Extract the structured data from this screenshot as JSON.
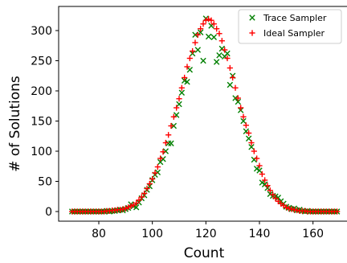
{
  "chart_data": {
    "type": "scatter",
    "title": "",
    "xlabel": "Count",
    "ylabel": "# of Solutions",
    "xlim": [
      65,
      173
    ],
    "ylim": [
      -16,
      340
    ],
    "xticks": [
      80,
      100,
      120,
      140,
      160
    ],
    "yticks": [
      0,
      50,
      100,
      150,
      200,
      250,
      300
    ],
    "grid": false,
    "legend": {
      "position": "top-right",
      "entries": [
        {
          "label": "Trace Sampler",
          "marker": "x",
          "color": "#008000"
        },
        {
          "label": "Ideal Sampler",
          "marker": "+",
          "color": "#ff0000"
        }
      ]
    },
    "series": [
      {
        "name": "Trace Sampler",
        "marker": "x",
        "color": "#008000",
        "x": [
          70,
          71,
          72,
          73,
          74,
          75,
          76,
          77,
          78,
          79,
          80,
          81,
          82,
          83,
          84,
          85,
          86,
          87,
          88,
          89,
          90,
          91,
          92,
          93,
          94,
          95,
          96,
          97,
          98,
          99,
          100,
          101,
          102,
          103,
          104,
          105,
          106,
          107,
          108,
          109,
          110,
          111,
          112,
          113,
          114,
          115,
          116,
          117,
          118,
          119,
          120,
          121,
          122,
          123,
          124,
          125,
          126,
          127,
          128,
          129,
          130,
          131,
          132,
          133,
          134,
          135,
          136,
          137,
          138,
          139,
          140,
          141,
          142,
          143,
          144,
          145,
          146,
          147,
          148,
          149,
          150,
          151,
          152,
          153,
          154,
          155,
          156,
          157,
          158,
          159,
          160,
          161,
          162,
          163,
          164,
          165,
          166,
          167,
          168,
          169
        ],
        "y": [
          0,
          0,
          0,
          0,
          0,
          0,
          0,
          0,
          0,
          0,
          0,
          0,
          0,
          1,
          0,
          1,
          1,
          2,
          3,
          2,
          4,
          6,
          12,
          9,
          7,
          15,
          22,
          27,
          36,
          42,
          52,
          61,
          65,
          82,
          87,
          100,
          113,
          113,
          142,
          160,
          178,
          197,
          217,
          215,
          235,
          262,
          293,
          268,
          297,
          250,
          320,
          290,
          308,
          289,
          248,
          259,
          270,
          257,
          262,
          210,
          225,
          188,
          182,
          168,
          150,
          133,
          121,
          107,
          86,
          71,
          68,
          48,
          45,
          39,
          29,
          26,
          25,
          23,
          17,
          13,
          8,
          6,
          4,
          5,
          2,
          3,
          1,
          0,
          1,
          0,
          0,
          0,
          0,
          0,
          0,
          0,
          0,
          0,
          0,
          0
        ]
      },
      {
        "name": "Ideal Sampler",
        "marker": "+",
        "color": "#ff0000",
        "x": [
          70,
          71,
          72,
          73,
          74,
          75,
          76,
          77,
          78,
          79,
          80,
          81,
          82,
          83,
          84,
          85,
          86,
          87,
          88,
          89,
          90,
          91,
          92,
          93,
          94,
          95,
          96,
          97,
          98,
          99,
          100,
          101,
          102,
          103,
          104,
          105,
          106,
          107,
          108,
          109,
          110,
          111,
          112,
          113,
          114,
          115,
          116,
          117,
          118,
          119,
          120,
          121,
          122,
          123,
          124,
          125,
          126,
          127,
          128,
          129,
          130,
          131,
          132,
          133,
          134,
          135,
          136,
          137,
          138,
          139,
          140,
          141,
          142,
          143,
          144,
          145,
          146,
          147,
          148,
          149,
          150,
          151,
          152,
          153,
          154,
          155,
          156,
          157,
          158,
          159,
          160,
          161,
          162,
          163,
          164,
          165,
          166,
          167,
          168,
          169
        ],
        "y": [
          0,
          0,
          0,
          0,
          0,
          0,
          0,
          0,
          0,
          0,
          0,
          0,
          0,
          1,
          1,
          2,
          2,
          3,
          3,
          4,
          5,
          7,
          9,
          11,
          14,
          19,
          24,
          30,
          38,
          46,
          54,
          64,
          74,
          88,
          99,
          114,
          127,
          142,
          157,
          172,
          187,
          205,
          222,
          240,
          254,
          266,
          280,
          293,
          303,
          311,
          317,
          319,
          317,
          311,
          303,
          295,
          283,
          268,
          254,
          238,
          222,
          205,
          188,
          172,
          157,
          143,
          130,
          114,
          100,
          88,
          76,
          62,
          52,
          43,
          35,
          28,
          22,
          17,
          13,
          10,
          7,
          5,
          4,
          3,
          2,
          1,
          1,
          1,
          0,
          0,
          0,
          0,
          0,
          0,
          0,
          0,
          0,
          0,
          0,
          0
        ]
      }
    ]
  }
}
